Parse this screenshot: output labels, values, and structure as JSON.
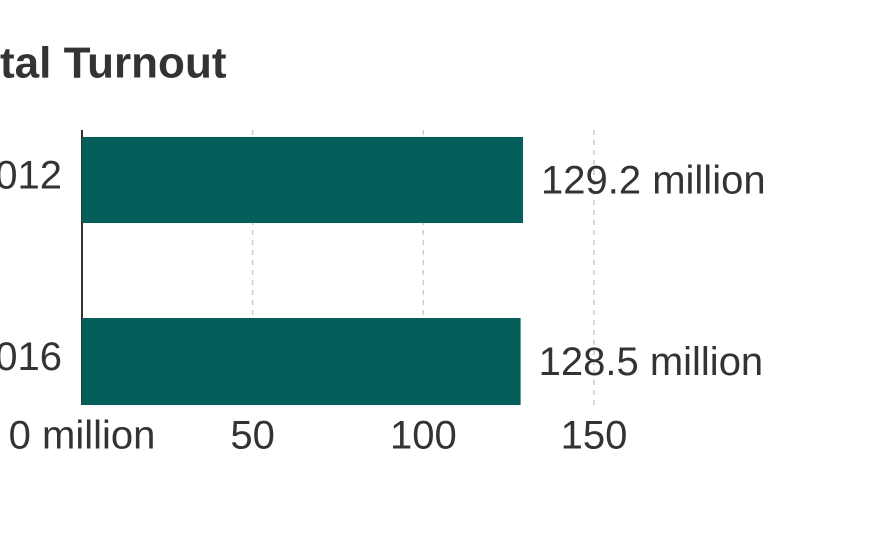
{
  "chart_data": {
    "type": "bar",
    "orientation": "horizontal",
    "title": "tal Turnout",
    "categories": [
      "012",
      "016"
    ],
    "values": [
      129.2,
      128.5
    ],
    "value_labels": [
      "129.2 million",
      "128.5 million"
    ],
    "color": "#045e5a",
    "xlim": [
      0,
      150
    ],
    "xticks": [
      {
        "value": 0,
        "label": "0 million"
      },
      50,
      100,
      150
    ],
    "grid": true
  }
}
